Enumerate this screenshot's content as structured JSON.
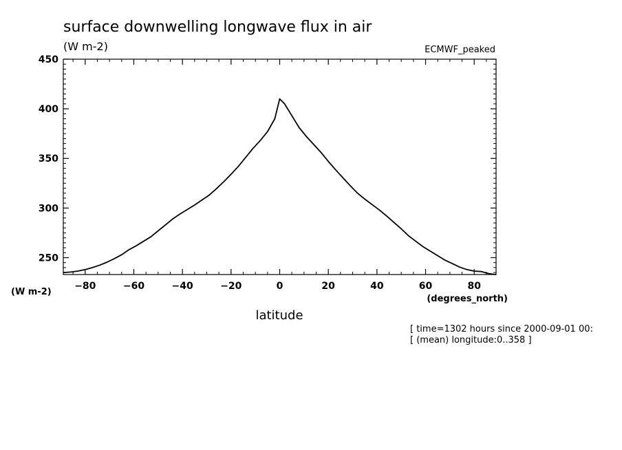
{
  "chart_data": {
    "type": "line",
    "title": "surface downwelling longwave flux in air",
    "units_label": "(W m-2)",
    "dataset_label": "ECMWF_peaked",
    "xlabel": "latitude",
    "xunits": "(degrees_north)",
    "ylabel": "(W m-2)",
    "info_lines": [
      "[ time=1302 hours since 2000-09-01 00:",
      "[ (mean) longitude:0..358 ]"
    ],
    "xlim": [
      -89,
      89
    ],
    "ylim": [
      233,
      450
    ],
    "xticks": [
      -80,
      -60,
      -40,
      -20,
      0,
      20,
      40,
      60,
      80
    ],
    "xtick_labels": [
      "−80",
      "−60",
      "−40",
      "−20",
      "0",
      "20",
      "40",
      "60",
      "80"
    ],
    "yticks": [
      250,
      300,
      350,
      400,
      450
    ],
    "ytick_labels": [
      "250",
      "300",
      "350",
      "400",
      "450"
    ],
    "grid": false,
    "series": [
      {
        "color": "#000000",
        "x": [
          -89,
          -86,
          -83,
          -80,
          -77,
          -74,
          -71,
          -68,
          -65,
          -62,
          -59,
          -56,
          -53,
          -50,
          -47,
          -44,
          -41,
          -38,
          -35,
          -32,
          -29,
          -26,
          -23,
          -20,
          -17,
          -14,
          -11,
          -8,
          -5,
          -2,
          0,
          2,
          5,
          8,
          11,
          14,
          17,
          20,
          23,
          26,
          29,
          32,
          35,
          38,
          41,
          44,
          47,
          50,
          53,
          56,
          59,
          62,
          65,
          68,
          71,
          74,
          77,
          80,
          83,
          86,
          89
        ],
        "y": [
          235,
          235.5,
          236.5,
          238,
          240,
          242.5,
          245.5,
          249,
          253,
          258,
          262,
          266.5,
          271,
          277,
          283,
          289,
          294,
          298.5,
          303,
          308,
          313,
          319.5,
          326.5,
          334,
          342,
          351,
          360,
          368,
          377,
          390,
          410,
          405,
          393,
          381,
          372,
          364,
          356,
          347,
          338.5,
          330.5,
          322.5,
          315,
          309,
          303.5,
          298,
          292,
          285.5,
          279,
          272,
          266.5,
          261,
          256.5,
          252,
          247.5,
          244,
          240.5,
          238,
          236.5,
          236,
          234,
          233
        ]
      }
    ]
  }
}
